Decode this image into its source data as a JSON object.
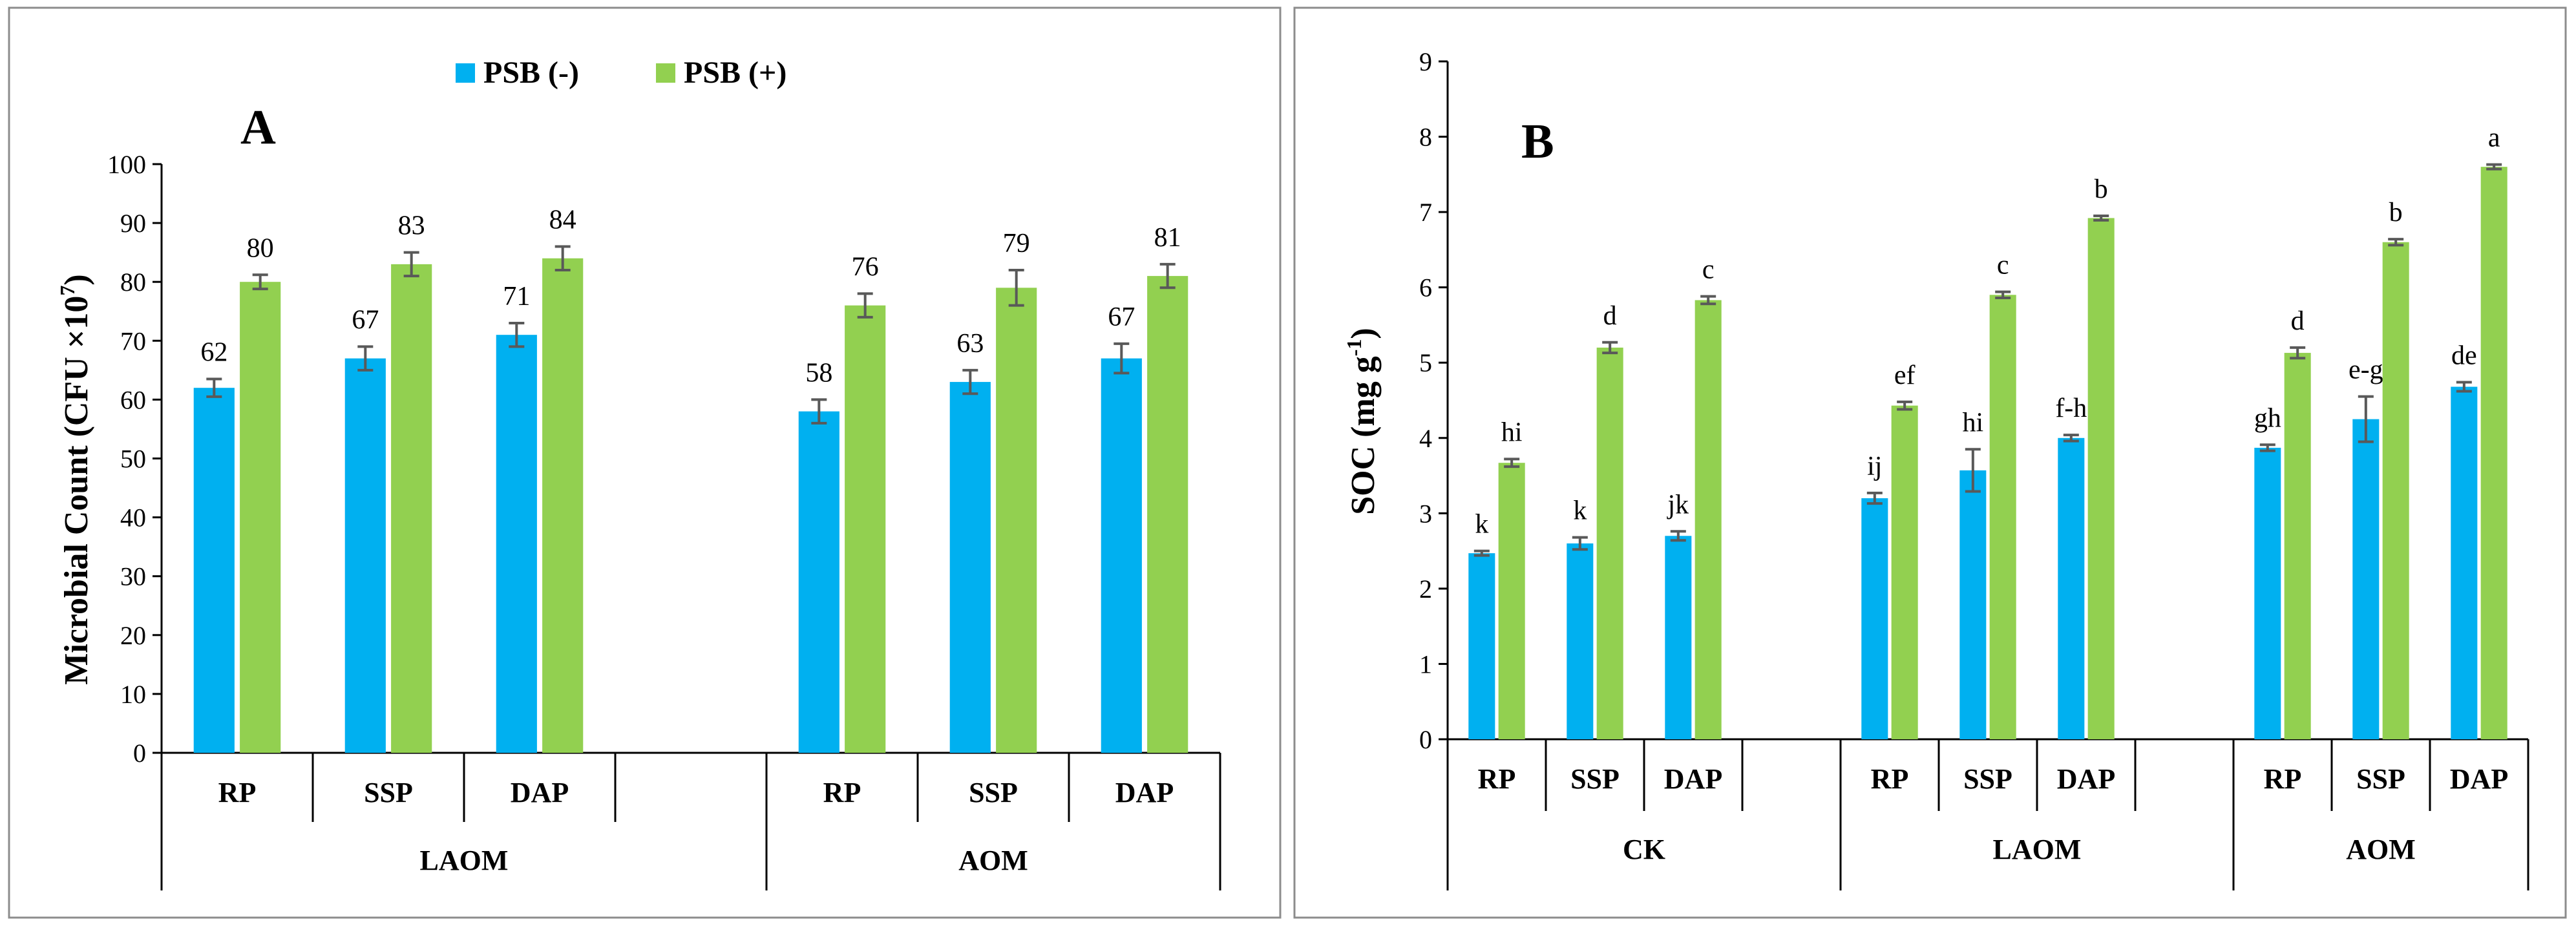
{
  "colors": {
    "psb_minus": "#00B0F0",
    "psb_plus": "#92D050",
    "error": "#595959",
    "axis": "#000000",
    "frame": "#8c8c8c"
  },
  "chart_data": [
    {
      "type": "bar",
      "panel": "A",
      "ylabel_main": "Microbial Count (CFU ×10",
      "ylabel_sup": "7",
      "ylabel_end": ")",
      "ylim": [
        0,
        100
      ],
      "yticks": [
        "0",
        "10",
        "20",
        "30",
        "40",
        "50",
        "60",
        "70",
        "80",
        "90",
        "100"
      ],
      "legend": [
        "PSB (-)",
        "PSB (+)"
      ],
      "groups": [
        {
          "name": "LAOM",
          "categories": [
            "RP",
            "SSP",
            "DAP",
            ""
          ]
        },
        {
          "name": "AOM",
          "categories": [
            "RP",
            "SSP",
            "DAP"
          ]
        }
      ],
      "series": [
        {
          "name": "PSB (-)",
          "values": [
            62,
            67,
            71,
            null,
            58,
            63,
            67
          ],
          "errors": [
            1.5,
            2,
            2,
            null,
            2,
            2,
            2.5
          ],
          "labels": [
            "62",
            "67",
            "71",
            "",
            "58",
            "63",
            "67"
          ]
        },
        {
          "name": "PSB (+)",
          "values": [
            80,
            83,
            84,
            null,
            76,
            79,
            81
          ],
          "errors": [
            1.2,
            2,
            2,
            null,
            2,
            3,
            2
          ],
          "labels": [
            "80",
            "83",
            "84",
            "",
            "76",
            "79",
            "81"
          ]
        }
      ]
    },
    {
      "type": "bar",
      "panel": "B",
      "ylabel_main": "SOC (mg g",
      "ylabel_sup": "-1",
      "ylabel_end": ")",
      "ylim": [
        0,
        9
      ],
      "yticks": [
        "0",
        "1",
        "2",
        "3",
        "4",
        "5",
        "6",
        "7",
        "8",
        "9"
      ],
      "groups": [
        {
          "name": "CK",
          "categories": [
            "RP",
            "SSP",
            "DAP",
            ""
          ]
        },
        {
          "name": "LAOM",
          "categories": [
            "RP",
            "SSP",
            "DAP",
            ""
          ]
        },
        {
          "name": "AOM",
          "categories": [
            "RP",
            "SSP",
            "DAP"
          ]
        }
      ],
      "series": [
        {
          "name": "PSB (-)",
          "values": [
            2.47,
            2.6,
            2.7,
            null,
            3.2,
            3.57,
            4.0,
            null,
            3.87,
            4.25,
            4.68
          ],
          "errors": [
            0.03,
            0.08,
            0.06,
            null,
            0.07,
            0.28,
            0.04,
            null,
            0.04,
            0.3,
            0.06
          ],
          "labels": [
            "k",
            "k",
            "jk",
            "",
            "ij",
            "hi",
            "f-h",
            "",
            "gh",
            "e-g",
            "de"
          ]
        },
        {
          "name": "PSB (+)",
          "values": [
            3.67,
            5.2,
            5.83,
            null,
            4.43,
            5.9,
            6.92,
            null,
            5.13,
            6.6,
            7.6
          ],
          "errors": [
            0.05,
            0.07,
            0.05,
            null,
            0.05,
            0.04,
            0.03,
            null,
            0.07,
            0.04,
            0.03
          ],
          "labels": [
            "hi",
            "d",
            "c",
            "",
            "ef",
            "c",
            "b",
            "",
            "d",
            "b",
            "a"
          ]
        }
      ]
    }
  ]
}
